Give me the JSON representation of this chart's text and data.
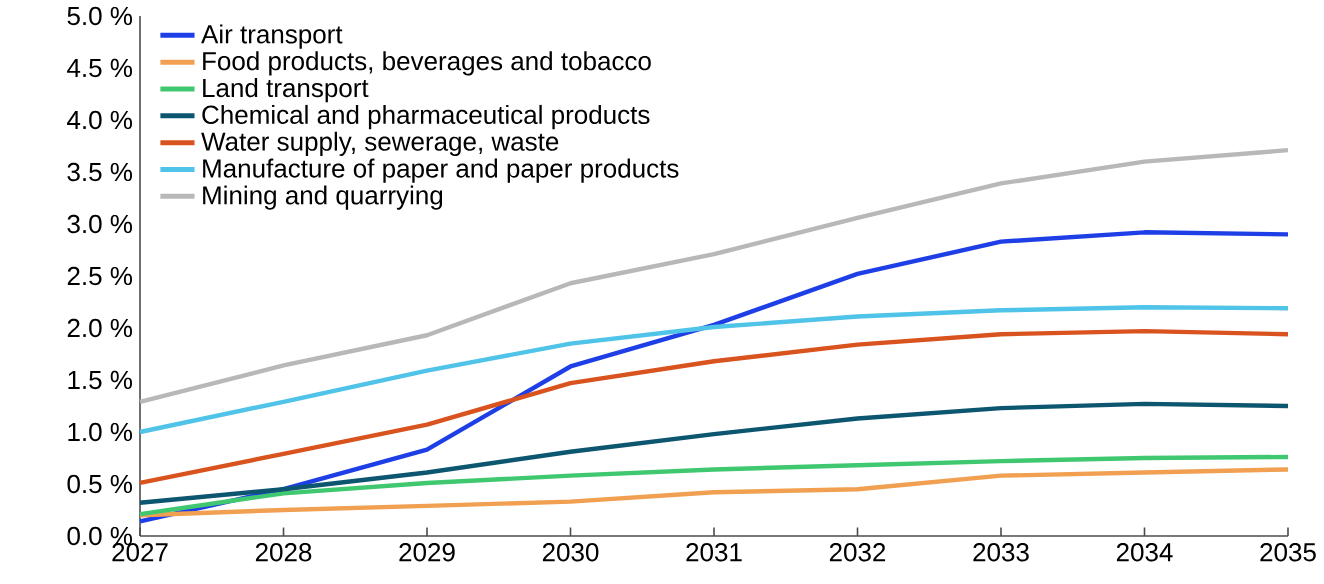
{
  "chart_data": {
    "type": "line",
    "x": [
      2027,
      2028,
      2029,
      2030,
      2031,
      2032,
      2033,
      2034,
      2035
    ],
    "xlim": [
      2027,
      2035
    ],
    "xticks": [
      2027,
      2028,
      2029,
      2030,
      2031,
      2032,
      2033,
      2034,
      2035
    ],
    "ylim": [
      0,
      5
    ],
    "yticks": [
      {
        "value": 0,
        "label": "0.0 %"
      },
      {
        "value": 0.5,
        "label": "0.5 %"
      },
      {
        "value": 1,
        "label": "1.0 %"
      },
      {
        "value": 1.5,
        "label": "1.5 %"
      },
      {
        "value": 2,
        "label": "2.0 %"
      },
      {
        "value": 2.5,
        "label": "2.5 %"
      },
      {
        "value": 3,
        "label": "3.0 %"
      },
      {
        "value": 3.5,
        "label": "3.5 %"
      },
      {
        "value": 4,
        "label": "4.0 %"
      },
      {
        "value": 4.5,
        "label": "4.5 %"
      },
      {
        "value": 5,
        "label": "5.0 %"
      }
    ],
    "grid": false,
    "legend": "top left",
    "marker": "none",
    "line_style": "solid",
    "series": [
      {
        "name": "Air transport",
        "color": "#1f3fe6",
        "values": [
          0.14,
          0.45,
          0.83,
          1.63,
          2.03,
          2.52,
          2.83,
          2.92,
          2.9
        ]
      },
      {
        "name": "Food products, beverages and tobacco",
        "color": "#f0a050",
        "values": [
          0.2,
          0.25,
          0.29,
          0.33,
          0.42,
          0.45,
          0.58,
          0.61,
          0.64
        ]
      },
      {
        "name": "Land transport",
        "color": "#40c870",
        "values": [
          0.21,
          0.41,
          0.51,
          0.58,
          0.64,
          0.68,
          0.72,
          0.75,
          0.76
        ]
      },
      {
        "name": "Chemical and pharmaceutical products",
        "color": "#0d5670",
        "values": [
          0.32,
          0.45,
          0.61,
          0.81,
          0.98,
          1.13,
          1.23,
          1.27,
          1.25
        ]
      },
      {
        "name": "Water supply, sewerage, waste",
        "color": "#d9531e",
        "values": [
          0.51,
          0.79,
          1.07,
          1.47,
          1.68,
          1.84,
          1.94,
          1.97,
          1.94
        ]
      },
      {
        "name": "Manufacture of paper and paper products",
        "color": "#4fc3e8",
        "values": [
          1.0,
          1.29,
          1.59,
          1.85,
          2.01,
          2.11,
          2.17,
          2.2,
          2.19
        ]
      },
      {
        "name": "Mining and quarrying",
        "color": "#b8b8b8",
        "values": [
          1.29,
          1.64,
          1.93,
          2.43,
          2.71,
          3.06,
          3.39,
          3.6,
          3.71
        ]
      }
    ]
  }
}
